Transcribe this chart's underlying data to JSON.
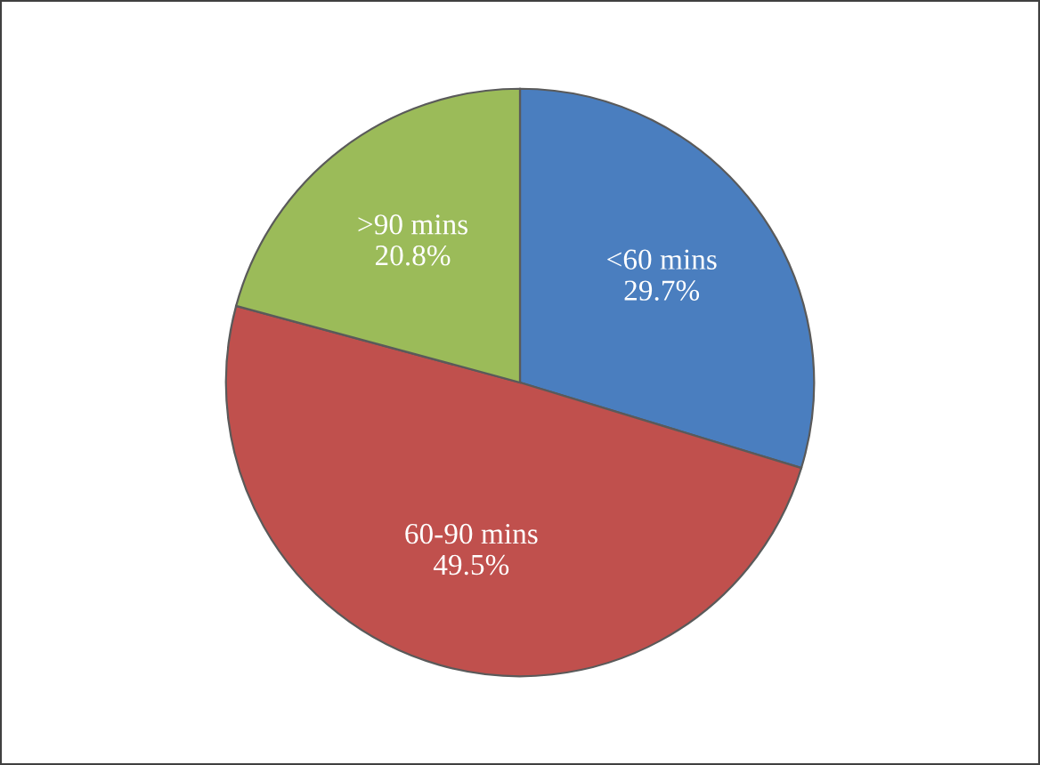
{
  "chart_data": {
    "type": "pie",
    "categories": [
      "<60 mins",
      "60-90 mins",
      ">90 mins"
    ],
    "values": [
      29.7,
      49.5,
      20.8
    ],
    "value_labels": [
      "29.7%",
      "49.5%",
      "20.8%"
    ],
    "colors": [
      "#4a7ebf",
      "#c0504d",
      "#9bbb59"
    ],
    "legend": false
  }
}
